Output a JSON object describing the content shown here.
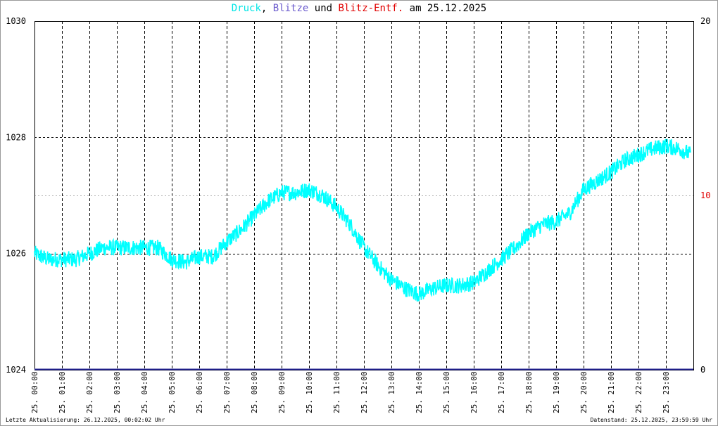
{
  "title": {
    "part1": "Druck",
    "sep1": ", ",
    "part2": "Blitze",
    "sep2": " und ",
    "part3": "Blitz-Entf.",
    "sep3": " am 25.12.2025",
    "colors": {
      "druck": "#00e5e5",
      "blitze": "#6a5acd",
      "blitz_entf": "#e00000",
      "text": "#000000"
    }
  },
  "footer": {
    "left": "Letzte Aktualisierung: 26.12.2025, 00:02:02 Uhr",
    "right": "Datenstand: 25.12.2025, 23:59:59 Uhr"
  },
  "chart_data": {
    "type": "line",
    "xlabel": "",
    "ylabel": "",
    "x_ticks": [
      "25. 00:00",
      "25. 01:00",
      "25. 02:00",
      "25. 03:00",
      "25. 04:00",
      "25. 05:00",
      "25. 06:00",
      "25. 07:00",
      "25. 08:00",
      "25. 09:00",
      "25. 10:00",
      "25. 11:00",
      "25. 12:00",
      "25. 13:00",
      "25. 14:00",
      "25. 15:00",
      "25. 16:00",
      "25. 17:00",
      "25. 18:00",
      "25. 19:00",
      "25. 20:00",
      "25. 21:00",
      "25. 22:00",
      "25. 23:00"
    ],
    "x_range_hours": [
      0,
      24
    ],
    "y_left": {
      "range": [
        1024,
        1030
      ],
      "ticks": [
        "1024",
        "1026",
        "1028",
        "1030"
      ],
      "color": "#000000"
    },
    "y_right": {
      "range": [
        0,
        20
      ],
      "ticks": [
        {
          "label": "0",
          "color": "#000000"
        },
        {
          "label": "10",
          "color": "#e00000"
        },
        {
          "label": "20",
          "color": "#000000"
        }
      ]
    },
    "grid": true,
    "series": [
      {
        "name": "Druck",
        "color": "#00ffff",
        "axis": "left",
        "x": [
          0,
          0.5,
          1,
          1.5,
          2,
          2.5,
          3,
          3.5,
          4,
          4.5,
          5,
          5.5,
          6,
          6.5,
          7,
          7.5,
          8,
          8.5,
          9,
          9.5,
          10,
          10.5,
          11,
          11.5,
          12,
          12.5,
          13,
          13.5,
          14,
          14.5,
          15,
          15.5,
          16,
          16.5,
          17,
          17.5,
          18,
          18.5,
          19,
          19.5,
          20,
          20.5,
          21,
          21.5,
          22,
          22.5,
          23,
          23.5,
          23.9
        ],
        "y": [
          1026.0,
          1025.9,
          1025.9,
          1025.9,
          1026.0,
          1026.1,
          1026.1,
          1026.1,
          1026.1,
          1026.1,
          1025.9,
          1025.85,
          1025.95,
          1025.95,
          1026.2,
          1026.4,
          1026.65,
          1026.9,
          1027.05,
          1027.05,
          1027.1,
          1027.0,
          1026.8,
          1026.5,
          1026.1,
          1025.8,
          1025.55,
          1025.4,
          1025.3,
          1025.4,
          1025.45,
          1025.45,
          1025.5,
          1025.7,
          1025.9,
          1026.1,
          1026.35,
          1026.5,
          1026.55,
          1026.7,
          1027.1,
          1027.25,
          1027.4,
          1027.6,
          1027.7,
          1027.8,
          1027.85,
          1027.8,
          1027.7
        ]
      },
      {
        "name": "Blitze",
        "color": "#1f1f8f",
        "axis": "right",
        "x": [
          0,
          24
        ],
        "y": [
          0,
          0
        ]
      }
    ]
  }
}
